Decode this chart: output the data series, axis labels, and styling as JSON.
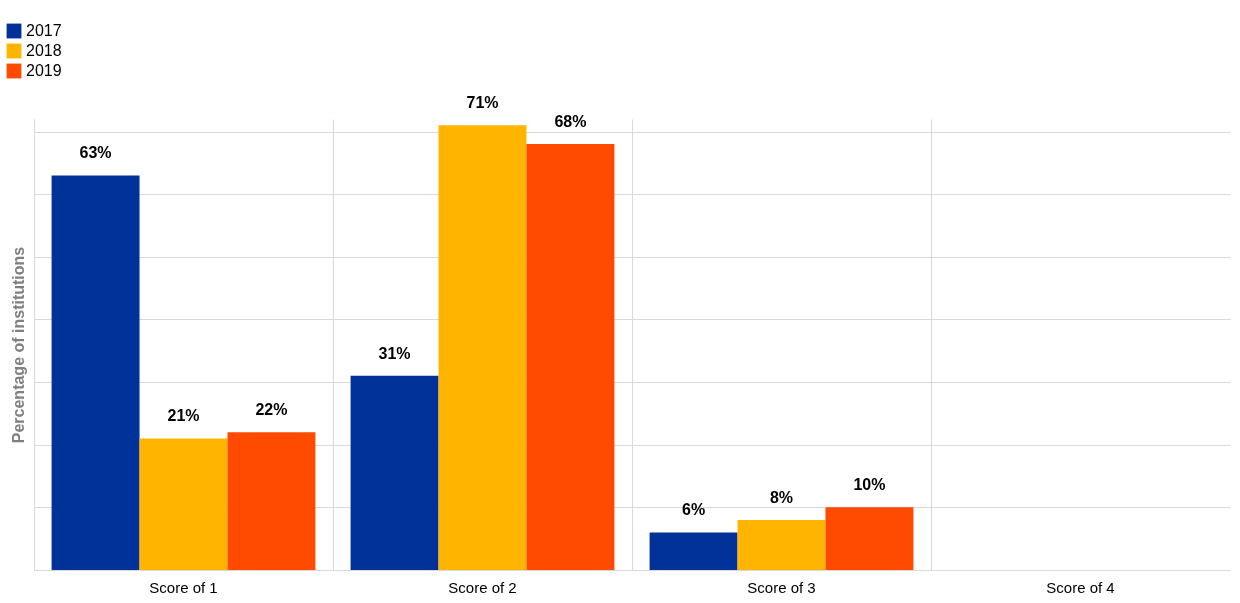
{
  "chart_data": {
    "type": "bar",
    "ylabel": "Percentage of institutions",
    "categories": [
      "Score of 1",
      "Score of 2",
      "Score of 3",
      "Score of 4"
    ],
    "series": [
      {
        "name": "2017",
        "color": "#003299",
        "values": [
          63,
          31,
          6,
          null
        ],
        "value_labels": [
          "63%",
          "31%",
          "6%",
          null
        ]
      },
      {
        "name": "2018",
        "color": "#ffb400",
        "values": [
          21,
          71,
          8,
          null
        ],
        "value_labels": [
          "21%",
          "71%",
          "8%",
          null
        ]
      },
      {
        "name": "2019",
        "color": "#ff4b00",
        "values": [
          22,
          68,
          10,
          null
        ],
        "value_labels": [
          "22%",
          "68%",
          "10%",
          null
        ]
      }
    ],
    "ylim": [
      0,
      72
    ],
    "yticks": [
      {
        "value": 0,
        "label": null
      },
      {
        "value": 10,
        "label": null
      },
      {
        "value": 20,
        "label": null
      },
      {
        "value": 30,
        "label": null
      },
      {
        "value": 40,
        "label": null
      },
      {
        "value": 50,
        "label": null
      },
      {
        "value": 60,
        "label": null
      },
      {
        "value": 70,
        "label": null
      }
    ],
    "grid": true,
    "legend": "top left"
  }
}
